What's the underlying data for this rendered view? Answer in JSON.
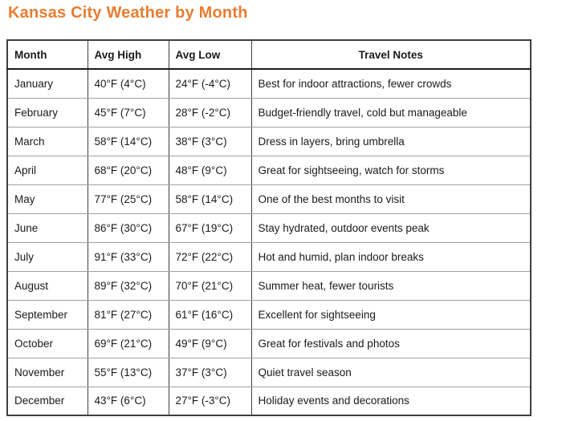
{
  "page": {
    "title": "Kansas City Weather by Month"
  },
  "colors": {
    "title": "#e87d30",
    "text": "#1a1a1a",
    "border-dark": "#3f3f3f",
    "border-heavy": "#1c1c1c",
    "border-light": "#a0a0a0",
    "bg": "#ffffff"
  },
  "table": {
    "headers": [
      "Month",
      "Avg High",
      "Avg Low",
      "Travel Notes"
    ],
    "rows": [
      [
        "January",
        "40°F (4°C)",
        "24°F (-4°C)",
        "Best for indoor attractions, fewer crowds"
      ],
      [
        "February",
        "45°F (7°C)",
        "28°F (-2°C)",
        "Budget-friendly travel, cold but manageable"
      ],
      [
        "March",
        "58°F (14°C)",
        "38°F (3°C)",
        "Dress in layers, bring umbrella"
      ],
      [
        "April",
        "68°F (20°C)",
        "48°F (9°C)",
        "Great for sightseeing, watch for storms"
      ],
      [
        "May",
        "77°F (25°C)",
        "58°F (14°C)",
        "One of the best months to visit"
      ],
      [
        "June",
        "86°F (30°C)",
        "67°F (19°C)",
        "Stay hydrated, outdoor events peak"
      ],
      [
        "July",
        "91°F (33°C)",
        "72°F (22°C)",
        "Hot and humid, plan indoor breaks"
      ],
      [
        "August",
        "89°F (32°C)",
        "70°F (21°C)",
        "Summer heat, fewer tourists"
      ],
      [
        "September",
        "81°F (27°C)",
        "61°F (16°C)",
        "Excellent for sightseeing"
      ],
      [
        "October",
        "69°F (21°C)",
        "49°F (9°C)",
        "Great for festivals and photos"
      ],
      [
        "November",
        "55°F (13°C)",
        "37°F (3°C)",
        "Quiet travel season"
      ],
      [
        "December",
        "43°F (6°C)",
        "27°F (-3°C)",
        "Holiday events and decorations"
      ]
    ]
  }
}
